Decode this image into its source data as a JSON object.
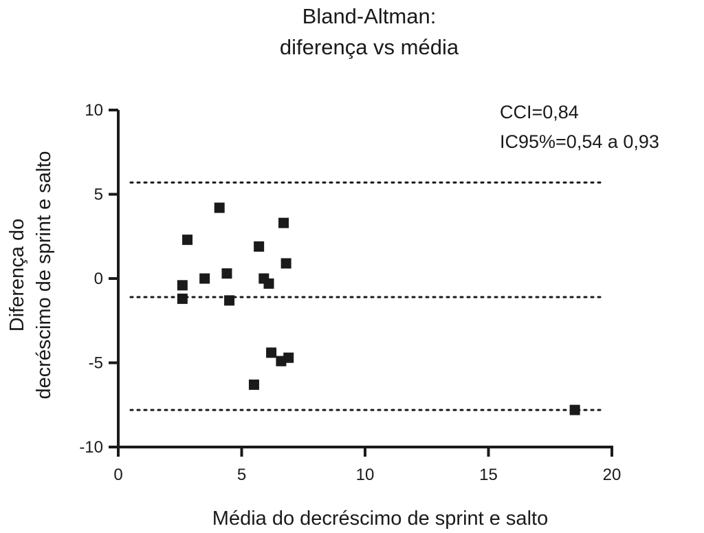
{
  "chart_data": {
    "type": "scatter",
    "title": [
      "Bland-Altman:",
      "diferença vs média"
    ],
    "xlabel": "Média do decréscimo de sprint e salto",
    "ylabel": [
      "Diferença do",
      "decréscimo de sprint e salto"
    ],
    "xlim": [
      0,
      20
    ],
    "ylim": [
      -10,
      10
    ],
    "x_ticks": [
      0,
      5,
      10,
      15,
      20
    ],
    "y_ticks": [
      10,
      5,
      0,
      -5,
      -10
    ],
    "grid": false,
    "marker": "square",
    "color": "#1a1a1a",
    "reference_lines": [
      5.7,
      -1.1,
      -7.8
    ],
    "annotations": [
      "CCI=0,84",
      "IC95%=0,54 a 0,93"
    ],
    "points": [
      {
        "x": 2.8,
        "y": 2.3
      },
      {
        "x": 4.1,
        "y": 4.2
      },
      {
        "x": 6.7,
        "y": 3.3
      },
      {
        "x": 5.7,
        "y": 1.9
      },
      {
        "x": 6.8,
        "y": 0.9
      },
      {
        "x": 2.6,
        "y": -0.4
      },
      {
        "x": 3.5,
        "y": 0.0
      },
      {
        "x": 4.4,
        "y": 0.3
      },
      {
        "x": 5.9,
        "y": 0.0
      },
      {
        "x": 6.1,
        "y": -0.3
      },
      {
        "x": 2.6,
        "y": -1.2
      },
      {
        "x": 4.5,
        "y": -1.3
      },
      {
        "x": 6.2,
        "y": -4.4
      },
      {
        "x": 6.9,
        "y": -4.7
      },
      {
        "x": 6.6,
        "y": -4.9
      },
      {
        "x": 5.5,
        "y": -6.3
      },
      {
        "x": 18.5,
        "y": -7.8
      }
    ]
  }
}
